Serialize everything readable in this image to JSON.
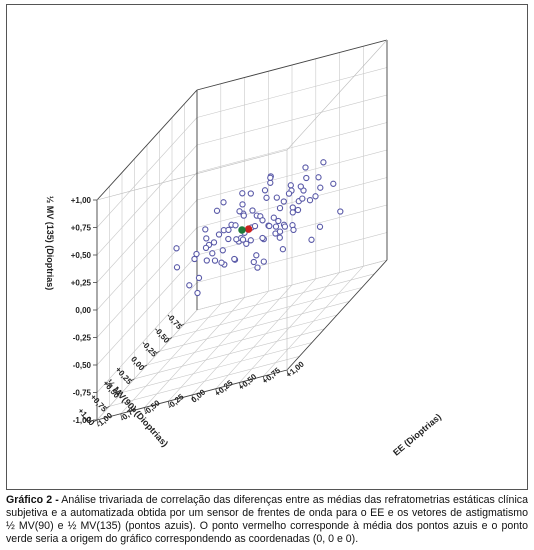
{
  "chart_data": {
    "type": "scatter",
    "projection": "3d",
    "title": "",
    "axes": {
      "x": {
        "label": "½ MV(90) (Dioptrias)",
        "ticks": [
          "-0,75",
          "-0,50",
          "-0,25",
          "0,00",
          "+0,25",
          "+0,50",
          "+0,75",
          "+1,00"
        ],
        "range": [
          -1.0,
          1.0
        ]
      },
      "y": {
        "label": "EE (Dioptrias)",
        "ticks": [
          "-1,00",
          "-0,75",
          "-0,50",
          "-0,25",
          "0,00",
          "+0,25",
          "+0,50",
          "+0,75",
          "+1,00"
        ],
        "range": [
          -1.0,
          1.0
        ]
      },
      "z": {
        "label": "½ MV (135) (Dioptrias)",
        "ticks": [
          "-1,00",
          "-0,75",
          "-0,50",
          "-0,25",
          "0,00",
          "+0,25",
          "+0,50",
          "+0,75",
          "+1,00"
        ],
        "range": [
          -1.0,
          1.0
        ]
      }
    },
    "grid": true,
    "series": [
      {
        "color": "#5a5aa8",
        "marker": "hollow-circle",
        "points": [
          [
            -0.42,
            0.3,
            0.08
          ],
          [
            -0.35,
            0.35,
            -0.05
          ],
          [
            -0.3,
            0.1,
            0.12
          ],
          [
            -0.25,
            0.25,
            -0.1
          ],
          [
            -0.2,
            0.05,
            0.02
          ],
          [
            -0.18,
            0.4,
            0.15
          ],
          [
            -0.15,
            0.2,
            -0.08
          ],
          [
            -0.12,
            -0.05,
            0.1
          ],
          [
            -0.1,
            0.3,
            -0.15
          ],
          [
            -0.08,
            0.15,
            0.05
          ],
          [
            -0.05,
            0.0,
            -0.05
          ],
          [
            -0.03,
            0.35,
            0.2
          ],
          [
            0.0,
            0.1,
            0.0
          ],
          [
            0.02,
            -0.1,
            0.08
          ],
          [
            0.04,
            0.25,
            -0.12
          ],
          [
            0.06,
            0.05,
            0.15
          ],
          [
            0.08,
            0.4,
            -0.02
          ],
          [
            0.1,
            -0.15,
            -0.1
          ],
          [
            0.12,
            0.2,
            0.05
          ],
          [
            0.14,
            0.0,
            -0.2
          ],
          [
            0.16,
            0.3,
            0.1
          ],
          [
            0.18,
            -0.05,
            0.02
          ],
          [
            0.2,
            0.15,
            -0.06
          ],
          [
            0.22,
            0.45,
            0.12
          ],
          [
            0.25,
            0.05,
            -0.15
          ],
          [
            0.28,
            -0.2,
            0.05
          ],
          [
            0.3,
            0.25,
            0.0
          ],
          [
            0.32,
            0.1,
            0.18
          ],
          [
            0.35,
            -0.1,
            -0.08
          ],
          [
            0.38,
            0.35,
            -0.12
          ],
          [
            -0.45,
            0.05,
            -0.2
          ],
          [
            -0.4,
            -0.1,
            0.0
          ],
          [
            -0.38,
            0.2,
            -0.25
          ],
          [
            -0.33,
            -0.2,
            0.05
          ],
          [
            -0.28,
            0.45,
            0.02
          ],
          [
            -0.22,
            -0.15,
            -0.18
          ],
          [
            -0.16,
            0.55,
            0.08
          ],
          [
            -0.11,
            -0.25,
            0.0
          ],
          [
            -0.06,
            0.5,
            -0.1
          ],
          [
            -0.01,
            -0.3,
            -0.05
          ],
          [
            0.03,
            0.55,
            0.05
          ],
          [
            0.07,
            -0.35,
            0.12
          ],
          [
            0.11,
            0.6,
            -0.08
          ],
          [
            0.15,
            -0.3,
            -0.02
          ],
          [
            0.19,
            0.5,
            0.18
          ],
          [
            0.24,
            -0.25,
            0.1
          ],
          [
            0.29,
            0.55,
            -0.05
          ],
          [
            0.34,
            -0.3,
            0.02
          ],
          [
            0.4,
            0.2,
            0.08
          ],
          [
            0.45,
            0.05,
            -0.1
          ],
          [
            -0.5,
            0.25,
            0.1
          ],
          [
            -0.55,
            0.15,
            -0.05
          ],
          [
            -0.48,
            -0.25,
            0.15
          ],
          [
            -0.6,
            0.4,
            -0.12
          ],
          [
            -0.52,
            0.55,
            0.0
          ],
          [
            0.5,
            -0.05,
            0.05
          ],
          [
            0.55,
            0.3,
            0.12
          ],
          [
            0.48,
            -0.2,
            -0.15
          ],
          [
            0.6,
            0.1,
            -0.02
          ],
          [
            0.42,
            0.45,
            -0.18
          ],
          [
            -0.05,
            0.65,
            0.3
          ],
          [
            0.1,
            0.7,
            0.25
          ],
          [
            -0.2,
            0.7,
            0.22
          ],
          [
            0.25,
            0.75,
            0.35
          ],
          [
            0.05,
            0.8,
            0.15
          ],
          [
            -0.3,
            -0.4,
            -0.1
          ],
          [
            -0.15,
            -0.45,
            -0.25
          ],
          [
            0.0,
            -0.5,
            -0.15
          ],
          [
            0.2,
            -0.45,
            -0.3
          ],
          [
            0.35,
            -0.5,
            -0.05
          ],
          [
            -0.6,
            -0.1,
            -0.35
          ],
          [
            -0.65,
            0.1,
            -0.3
          ],
          [
            -0.55,
            -0.35,
            -0.28
          ],
          [
            0.55,
            -0.4,
            0.2
          ],
          [
            0.65,
            0.2,
            0.28
          ],
          [
            0.1,
            0.35,
            0.4
          ],
          [
            -0.1,
            0.25,
            0.38
          ],
          [
            0.3,
            0.4,
            0.42
          ],
          [
            -0.25,
            0.6,
            -0.35
          ],
          [
            0.15,
            0.9,
            -0.1
          ],
          [
            -0.4,
            0.75,
            0.05
          ],
          [
            0.4,
            0.8,
            0.2
          ],
          [
            -0.7,
            0.3,
            0.15
          ],
          [
            0.7,
            -0.1,
            -0.2
          ],
          [
            -0.35,
            0.85,
            -0.2
          ],
          [
            0.05,
            0.15,
            -0.3
          ],
          [
            -0.08,
            0.05,
            0.28
          ],
          [
            0.18,
            0.1,
            0.3
          ],
          [
            -0.28,
            0.15,
            0.3
          ],
          [
            0.26,
            0.3,
            -0.28
          ],
          [
            -0.02,
            0.42,
            -0.28
          ],
          [
            0.12,
            -0.2,
            0.28
          ],
          [
            -0.2,
            -0.3,
            0.22
          ],
          [
            0.32,
            0.62,
            0.05
          ],
          [
            -0.45,
            0.62,
            0.25
          ]
        ]
      },
      {
        "color": "#cc2222",
        "marker": "filled-circle",
        "points": [
          [
            0.02,
            0.08,
            0.0
          ]
        ]
      },
      {
        "color": "#1f7a3a",
        "marker": "filled-circle",
        "points": [
          [
            0.0,
            0.0,
            0.0
          ]
        ]
      }
    ]
  },
  "caption": {
    "label": "Gráfico 2 -",
    "text": "Análise trivariada de correlação das diferenças entre as médias das refratometrias estáticas clínica subjetiva e a automatizada obtida por um sensor de frentes de onda para o EE e os vetores de astigmatismo ½ MV(90) e ½ MV(135) (pontos azuis). O ponto vermelho corresponde à média dos pontos azuis e o ponto verde seria a origem do gráfico correspondendo as coordenadas (0, 0 e 0)."
  }
}
